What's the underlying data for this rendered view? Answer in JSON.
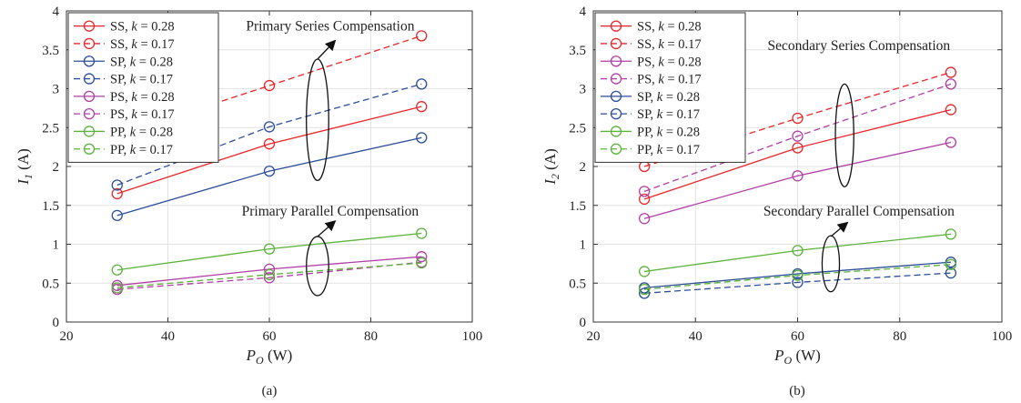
{
  "chart_data": [
    {
      "type": "line",
      "caption": "(a)",
      "xlabel": {
        "sym": "P",
        "sub": "O",
        "unit": " (W)"
      },
      "ylabel": {
        "sym": "I",
        "sub": "1",
        "unit": " (A)"
      },
      "xlim": [
        20,
        100
      ],
      "ylim": [
        0,
        4
      ],
      "xticks": [
        20,
        40,
        60,
        80,
        100
      ],
      "yticks": [
        0,
        0.5,
        1,
        1.5,
        2,
        2.5,
        3,
        3.5,
        4
      ],
      "grid": true,
      "legend_position": "top-left",
      "x": [
        30,
        60,
        90
      ],
      "series": [
        {
          "name": "SS",
          "k": "0.28",
          "color": "#e8262a",
          "dashed": false,
          "values": [
            1.65,
            2.29,
            2.77
          ]
        },
        {
          "name": "SS",
          "k": "0.17",
          "color": "#e8262a",
          "dashed": true,
          "values": [
            2.4,
            3.04,
            3.68
          ]
        },
        {
          "name": "SP",
          "k": "0.28",
          "color": "#2b4d9a",
          "dashed": false,
          "values": [
            1.37,
            1.94,
            2.37
          ]
        },
        {
          "name": "SP",
          "k": "0.17",
          "color": "#2b4d9a",
          "dashed": true,
          "values": [
            1.76,
            2.51,
            3.06
          ]
        },
        {
          "name": "PS",
          "k": "0.28",
          "color": "#b03fa5",
          "dashed": false,
          "values": [
            0.47,
            0.68,
            0.84
          ]
        },
        {
          "name": "PS",
          "k": "0.17",
          "color": "#b03fa5",
          "dashed": true,
          "values": [
            0.42,
            0.57,
            0.77
          ]
        },
        {
          "name": "PP",
          "k": "0.28",
          "color": "#5cb33b",
          "dashed": false,
          "values": [
            0.67,
            0.94,
            1.14
          ]
        },
        {
          "name": "PP",
          "k": "0.17",
          "color": "#5cb33b",
          "dashed": true,
          "values": [
            0.44,
            0.61,
            0.76
          ]
        }
      ],
      "annotations": [
        {
          "text": "Primary Series Compensation",
          "x": 72,
          "y": 3.75,
          "ellipse": {
            "cx": 69.5,
            "cy": 2.6,
            "rx": 2.2,
            "ry": 0.78
          },
          "arrow": {
            "from": [
              69.5,
              3.38
            ],
            "to": [
              73,
              3.62
            ]
          }
        },
        {
          "text": "Primary Parallel Compensation",
          "x": 72,
          "y": 1.37,
          "ellipse": {
            "cx": 69.5,
            "cy": 0.72,
            "rx": 2.2,
            "ry": 0.38
          },
          "arrow": {
            "from": [
              69.5,
              1.1
            ],
            "to": [
              73,
              1.3
            ]
          }
        }
      ],
      "legend_var": "k"
    },
    {
      "type": "line",
      "caption": "(b)",
      "xlabel": {
        "sym": "P",
        "sub": "O",
        "unit": " (W)"
      },
      "ylabel": {
        "sym": "I",
        "sub": "2",
        "unit": " (A)"
      },
      "xlim": [
        20,
        100
      ],
      "ylim": [
        0,
        4
      ],
      "xticks": [
        20,
        40,
        60,
        80,
        100
      ],
      "yticks": [
        0,
        0.5,
        1,
        1.5,
        2,
        2.5,
        3,
        3.5,
        4
      ],
      "grid": true,
      "legend_position": "top-left",
      "x": [
        30,
        60,
        90
      ],
      "series": [
        {
          "name": "SS",
          "k": "0.28",
          "color": "#e8262a",
          "dashed": false,
          "values": [
            1.58,
            2.24,
            2.73
          ]
        },
        {
          "name": "SS",
          "k": "0.17",
          "color": "#e8262a",
          "dashed": true,
          "values": [
            2.0,
            2.62,
            3.21
          ]
        },
        {
          "name": "PS",
          "k": "0.28",
          "color": "#b03fa5",
          "dashed": false,
          "values": [
            1.33,
            1.88,
            2.31
          ]
        },
        {
          "name": "PS",
          "k": "0.17",
          "color": "#b03fa5",
          "dashed": true,
          "values": [
            1.68,
            2.39,
            3.06
          ]
        },
        {
          "name": "SP",
          "k": "0.28",
          "color": "#2b4d9a",
          "dashed": false,
          "values": [
            0.44,
            0.62,
            0.77
          ]
        },
        {
          "name": "SP",
          "k": "0.17",
          "color": "#2b4d9a",
          "dashed": true,
          "values": [
            0.37,
            0.51,
            0.63
          ]
        },
        {
          "name": "PP",
          "k": "0.28",
          "color": "#5cb33b",
          "dashed": false,
          "values": [
            0.65,
            0.92,
            1.13
          ]
        },
        {
          "name": "PP",
          "k": "0.17",
          "color": "#5cb33b",
          "dashed": true,
          "values": [
            0.42,
            0.6,
            0.74
          ]
        }
      ],
      "annotations": [
        {
          "text": "Secondary Series Compensation",
          "x": 72,
          "y": 3.5,
          "ellipse": {
            "cx": 69.2,
            "cy": 2.4,
            "rx": 1.8,
            "ry": 0.66
          },
          "arrow": null
        },
        {
          "text": "Secondary Parallel Compensation",
          "x": 72,
          "y": 1.37,
          "ellipse": {
            "cx": 66.5,
            "cy": 0.75,
            "rx": 1.7,
            "ry": 0.36
          },
          "arrow": {
            "from": [
              66.5,
              1.1
            ],
            "to": [
              69.8,
              1.28
            ]
          }
        }
      ],
      "legend_var": "k"
    }
  ]
}
